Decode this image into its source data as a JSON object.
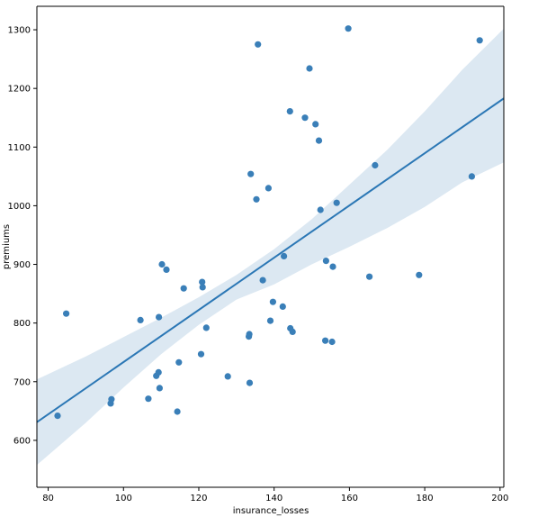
{
  "chart_data": {
    "type": "scatter",
    "title": "",
    "xlabel": "insurance_losses",
    "ylabel": "premiums",
    "xlim": [
      77,
      201
    ],
    "ylim": [
      520,
      1340
    ],
    "xticks": [
      80,
      100,
      120,
      140,
      160,
      180,
      200
    ],
    "yticks": [
      600,
      700,
      800,
      900,
      1000,
      1100,
      1200,
      1300
    ],
    "grid": false,
    "legend": "none",
    "colors": {
      "points": "#3a7fb8",
      "line": "#2b77b5",
      "band": "#dce8f2"
    },
    "series": [
      {
        "points": [
          [
            82.5,
            642
          ],
          [
            84.8,
            816
          ],
          [
            96.6,
            663
          ],
          [
            96.8,
            670
          ],
          [
            104.5,
            805
          ],
          [
            106.6,
            671
          ],
          [
            108.7,
            710
          ],
          [
            109.3,
            716
          ],
          [
            109.4,
            810
          ],
          [
            109.6,
            689
          ],
          [
            110.2,
            900
          ],
          [
            111.4,
            891
          ],
          [
            114.3,
            649
          ],
          [
            114.7,
            733
          ],
          [
            116.0,
            859
          ],
          [
            120.6,
            747
          ],
          [
            120.9,
            870
          ],
          [
            121.0,
            861
          ],
          [
            122.0,
            792
          ],
          [
            127.7,
            709
          ],
          [
            133.3,
            777
          ],
          [
            133.4,
            781
          ],
          [
            133.5,
            698
          ],
          [
            133.8,
            1054
          ],
          [
            135.3,
            1011
          ],
          [
            135.7,
            1275
          ],
          [
            137.0,
            873
          ],
          [
            138.5,
            1030
          ],
          [
            139.0,
            804
          ],
          [
            139.7,
            836
          ],
          [
            142.3,
            828
          ],
          [
            142.6,
            914
          ],
          [
            144.2,
            1161
          ],
          [
            144.3,
            791
          ],
          [
            144.9,
            785
          ],
          [
            148.2,
            1150
          ],
          [
            149.4,
            1234
          ],
          [
            151.0,
            1139
          ],
          [
            151.9,
            1111
          ],
          [
            152.3,
            993
          ],
          [
            153.6,
            770
          ],
          [
            153.8,
            906
          ],
          [
            155.4,
            768
          ],
          [
            155.6,
            896
          ],
          [
            156.6,
            1005
          ],
          [
            159.7,
            1302
          ],
          [
            165.3,
            879
          ],
          [
            166.8,
            1069
          ],
          [
            178.5,
            882
          ],
          [
            192.5,
            1050
          ],
          [
            194.6,
            1282
          ]
        ]
      }
    ],
    "regression": {
      "x": [
        77,
        201
      ],
      "y": [
        631,
        1183
      ],
      "band_x": [
        77,
        90,
        100,
        110,
        120,
        130,
        140,
        150,
        160,
        170,
        180,
        190,
        201
      ],
      "band_lower": [
        558,
        630,
        690,
        747,
        797,
        840,
        866,
        900,
        930,
        962,
        998,
        1040,
        1074
      ],
      "band_upper": [
        704,
        743,
        776,
        809,
        844,
        882,
        926,
        977,
        1036,
        1095,
        1161,
        1232,
        1302
      ]
    }
  }
}
